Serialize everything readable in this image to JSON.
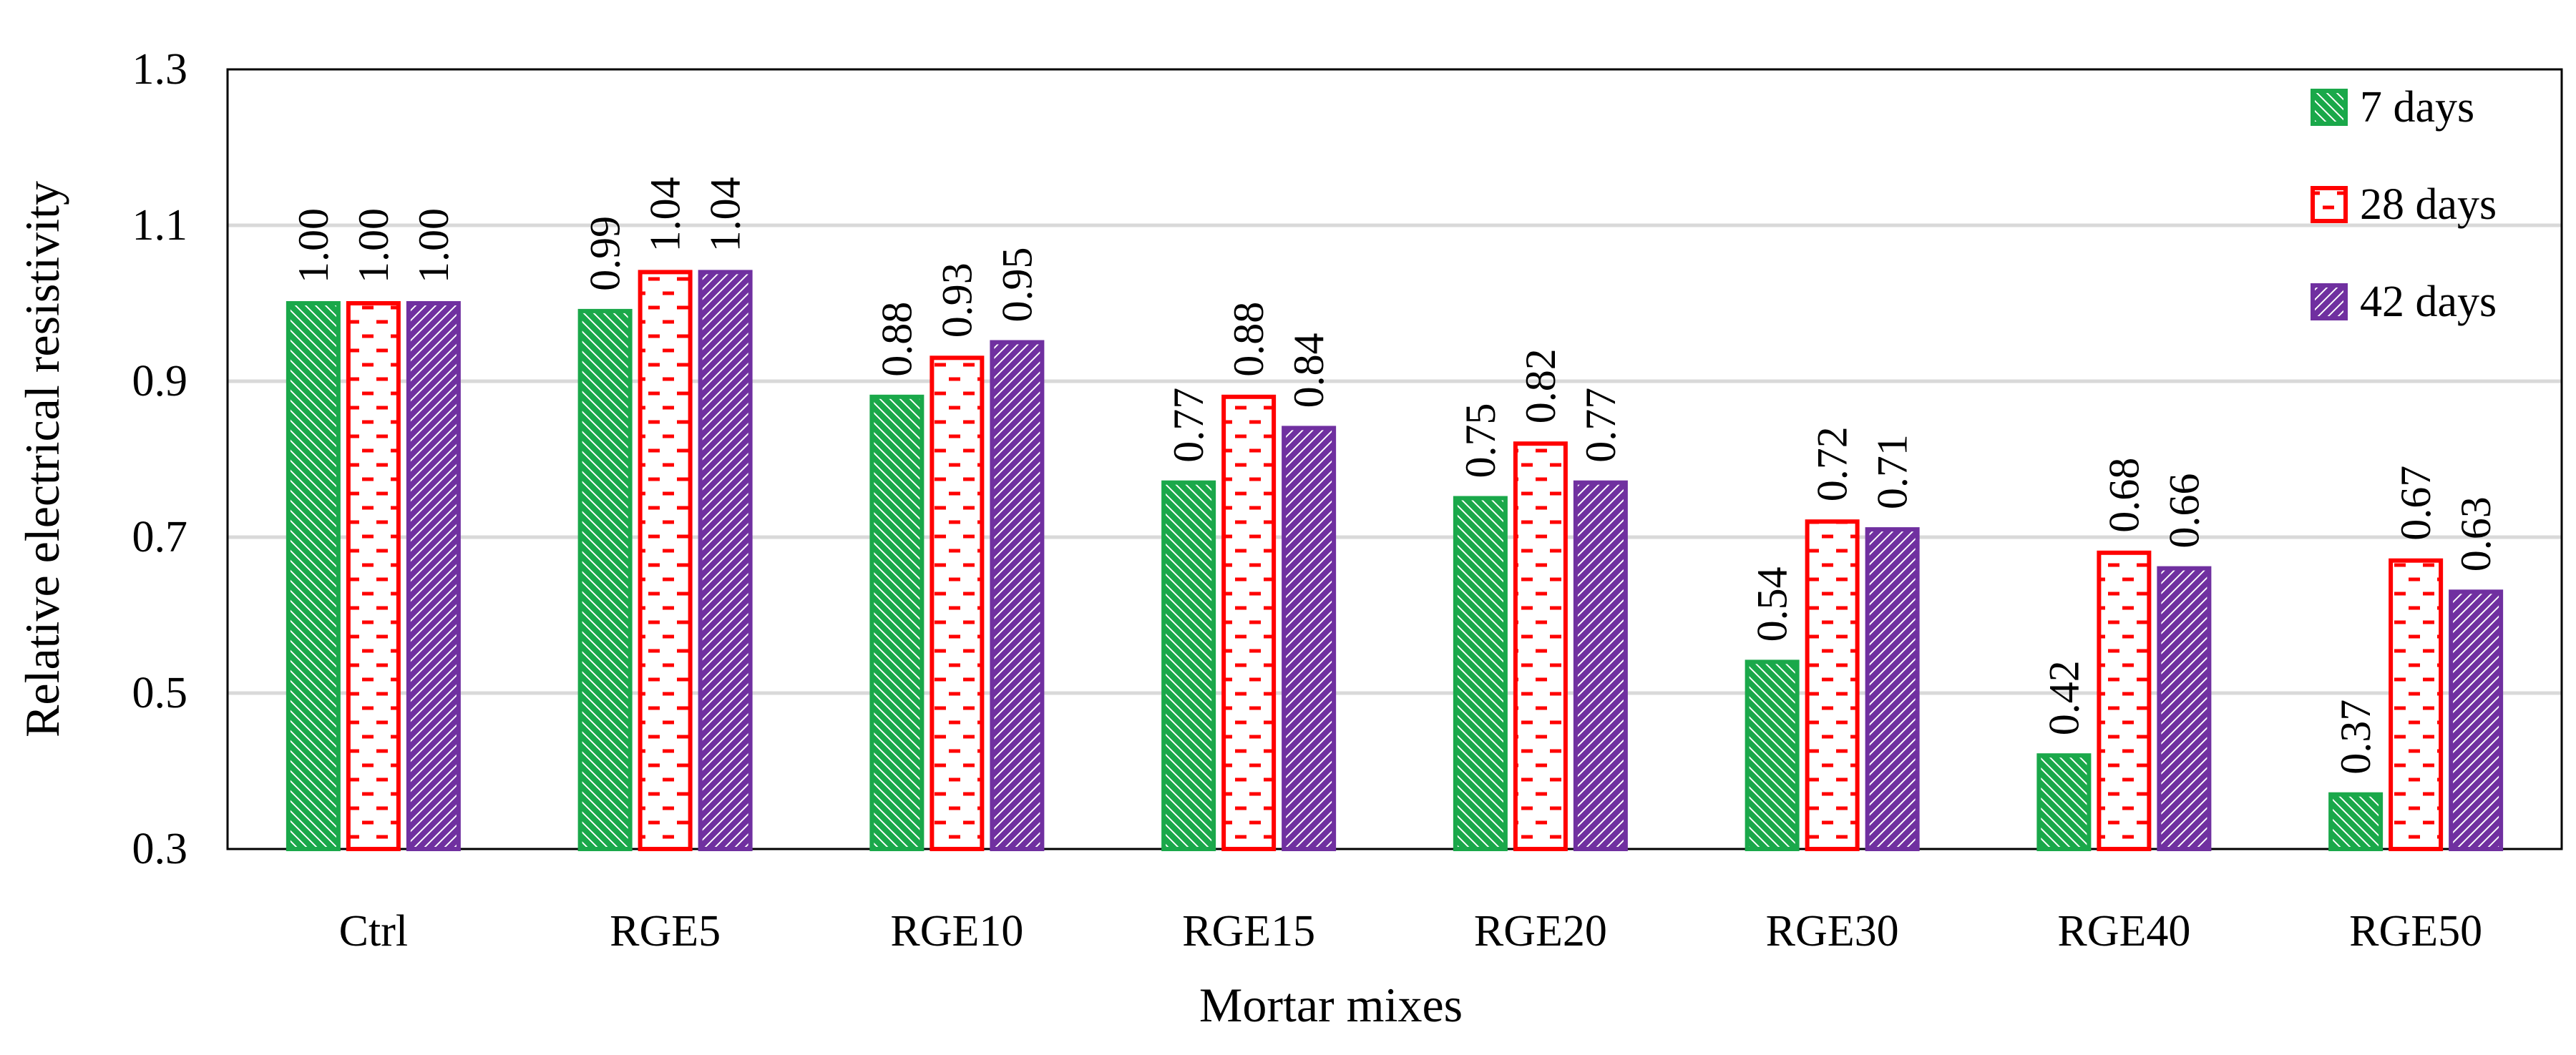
{
  "chart_data": {
    "type": "bar",
    "title": "",
    "xlabel": "Mortar mixes",
    "ylabel": "Relative electrical resistivity",
    "ylim": [
      0.3,
      1.3
    ],
    "yticks": [
      "0.3",
      "0.5",
      "0.7",
      "0.9",
      "1.1",
      "1.3"
    ],
    "grid": true,
    "legend_position": "top-right",
    "categories": [
      "Ctrl",
      "RGE5",
      "RGE10",
      "RGE15",
      "RGE20",
      "RGE30",
      "RGE40",
      "RGE50"
    ],
    "series": [
      {
        "name": "7 days",
        "color": "#1aa84a",
        "pattern": "diagonal-down",
        "values": [
          1.0,
          0.99,
          0.88,
          0.77,
          0.75,
          0.54,
          0.42,
          0.37
        ],
        "labels": [
          "1.00",
          "0.99",
          "0.88",
          "0.77",
          "0.75",
          "0.54",
          "0.42",
          "0.37"
        ]
      },
      {
        "name": "28 days",
        "color": "#ff0000",
        "pattern": "dashed-horizontal",
        "values": [
          1.0,
          1.04,
          0.93,
          0.88,
          0.82,
          0.72,
          0.68,
          0.67
        ],
        "labels": [
          "1.00",
          "1.04",
          "0.93",
          "0.88",
          "0.82",
          "0.72",
          "0.68",
          "0.67"
        ]
      },
      {
        "name": "42 days",
        "color": "#7030a0",
        "pattern": "diagonal-up",
        "values": [
          1.0,
          1.04,
          0.95,
          0.84,
          0.77,
          0.71,
          0.66,
          0.63
        ],
        "labels": [
          "1.00",
          "1.04",
          "0.95",
          "0.84",
          "0.77",
          "0.71",
          "0.66",
          "0.63"
        ]
      }
    ]
  }
}
